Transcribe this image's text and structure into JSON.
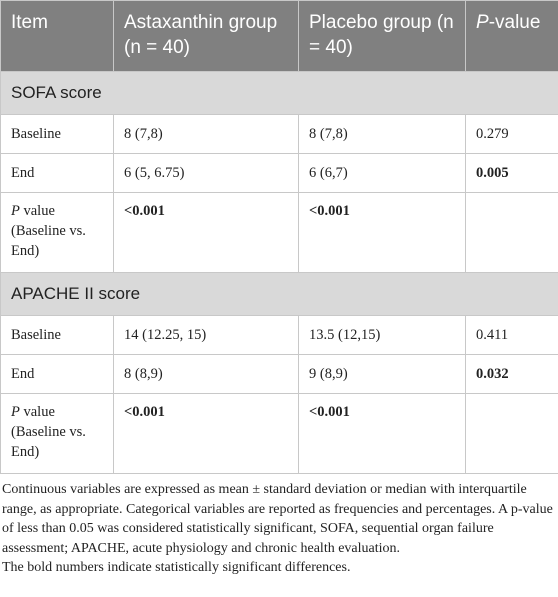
{
  "table": {
    "header": [
      "Item",
      "Astaxanthin group (n = 40)",
      "Placebo group (n = 40)",
      [
        "P",
        "-value"
      ]
    ],
    "sections": [
      {
        "title": "SOFA score",
        "rows": [
          [
            "Baseline",
            "8 (7,8)",
            "8 (7,8)",
            "0.279"
          ],
          [
            "End",
            "6 (5, 6.75)",
            "6 (6,7)",
            "0.005"
          ],
          [
            [
              "P",
              " value (Baseline vs. End)"
            ],
            "<0.001",
            "<0.001"
          ]
        ]
      },
      {
        "title": "APACHE II score",
        "rows": [
          [
            "Baseline",
            "14 (12.25, 15)",
            "13.5 (12,15)",
            "0.411"
          ],
          [
            "End",
            "8 (8,9)",
            "9 (8,9)",
            "0.032"
          ],
          [
            [
              "P",
              " value (Baseline vs. End)"
            ],
            "<0.001",
            "<0.001"
          ]
        ]
      }
    ]
  },
  "footnotes": [
    "Continuous variables are expressed as mean ± standard deviation or median with interquartile range, as appropriate. Categorical variables are reported as frequencies and percentages. A p-value of less than 0.05 was considered statistically significant, SOFA, sequential organ failure assessment; APACHE, acute physiology and chronic health evaluation.",
    "The bold numbers indicate statistically significant differences."
  ]
}
